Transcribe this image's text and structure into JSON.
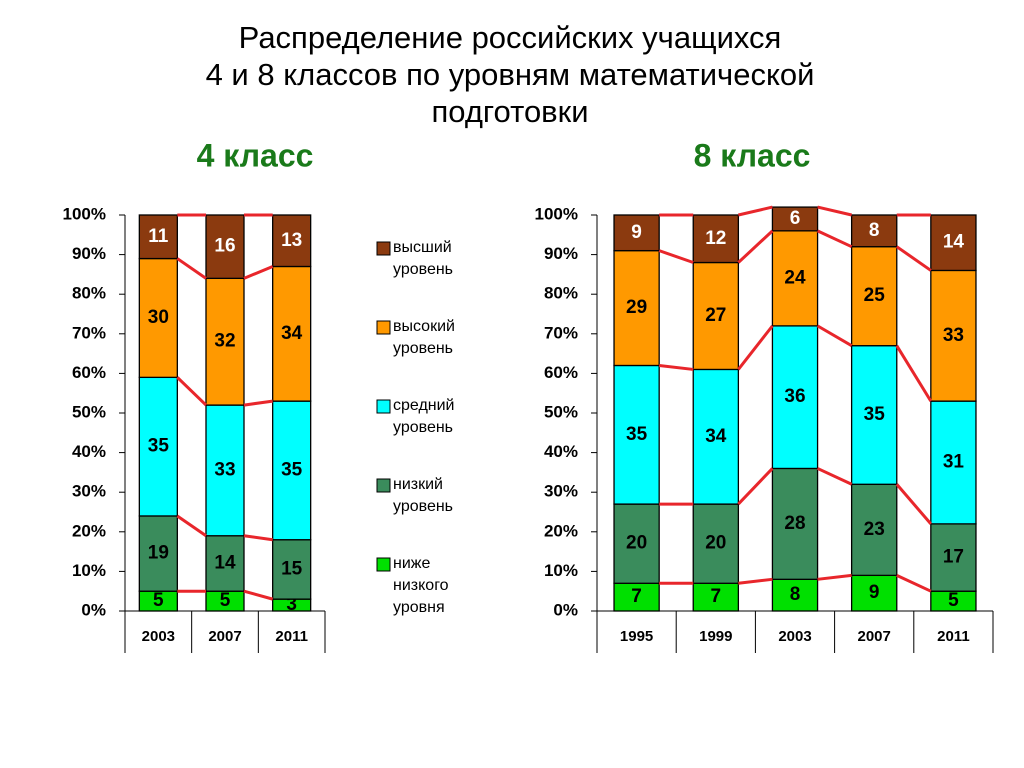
{
  "title": [
    "Распределение российских учащихся",
    "4 и 8 классов по уровням математической",
    "подготовки"
  ],
  "chart_data": [
    {
      "type": "bar",
      "stacked": true,
      "title": "4 класс",
      "title_color": "#1a7a1a",
      "categories": [
        "2003",
        "2007",
        "2011"
      ],
      "series": [
        {
          "name": "ниже низкого уровня",
          "color": "#00e000",
          "values": [
            5,
            5,
            3
          ]
        },
        {
          "name": "низкий уровень",
          "color": "#3a8c5c",
          "values": [
            19,
            14,
            15
          ]
        },
        {
          "name": "средний уровень",
          "color": "#00ffff",
          "values": [
            35,
            33,
            35
          ]
        },
        {
          "name": "высокий уровень",
          "color": "#ff9900",
          "values": [
            30,
            32,
            34
          ]
        },
        {
          "name": "высший уровень",
          "color": "#8b3a0f",
          "values": [
            11,
            16,
            13
          ]
        }
      ],
      "ylim": [
        0,
        100
      ],
      "yticks": [
        {
          "value": 0,
          "label": "0%"
        },
        {
          "value": 10,
          "label": "10%"
        },
        {
          "value": 20,
          "label": "20%"
        },
        {
          "value": 30,
          "label": "30%"
        },
        {
          "value": 40,
          "label": "40%"
        },
        {
          "value": 50,
          "label": "50%"
        },
        {
          "value": 60,
          "label": "60%"
        },
        {
          "value": 70,
          "label": "70%"
        },
        {
          "value": 80,
          "label": "80%"
        },
        {
          "value": 90,
          "label": "90%"
        },
        {
          "value": 100,
          "label": "100%"
        }
      ],
      "connector_color": "#e8262b",
      "legend": "right"
    },
    {
      "type": "bar",
      "stacked": true,
      "title": "8 класс",
      "title_color": "#1a7a1a",
      "categories": [
        "1995",
        "1999",
        "2003",
        "2007",
        "2011"
      ],
      "series": [
        {
          "color": "#00e000",
          "values": [
            7,
            7,
            8,
            9,
            5
          ]
        },
        {
          "color": "#3a8c5c",
          "values": [
            20,
            20,
            28,
            23,
            17
          ]
        },
        {
          "color": "#00ffff",
          "values": [
            35,
            34,
            36,
            35,
            31
          ]
        },
        {
          "color": "#ff9900",
          "values": [
            29,
            27,
            24,
            25,
            33
          ]
        },
        {
          "color": "#8b3a0f",
          "values": [
            9,
            12,
            6,
            8,
            14
          ]
        }
      ],
      "ylim": [
        0,
        100
      ],
      "yticks": [
        {
          "value": 0,
          "label": "0%"
        },
        {
          "value": 10,
          "label": "10%"
        },
        {
          "value": 20,
          "label": "20%"
        },
        {
          "value": 30,
          "label": "30%"
        },
        {
          "value": 40,
          "label": "40%"
        },
        {
          "value": 50,
          "label": "50%"
        },
        {
          "value": 60,
          "label": "60%"
        },
        {
          "value": 70,
          "label": "70%"
        },
        {
          "value": 80,
          "label": "80%"
        },
        {
          "value": 90,
          "label": "90%"
        },
        {
          "value": 100,
          "label": "100%"
        }
      ],
      "connector_color": "#e8262b"
    }
  ]
}
